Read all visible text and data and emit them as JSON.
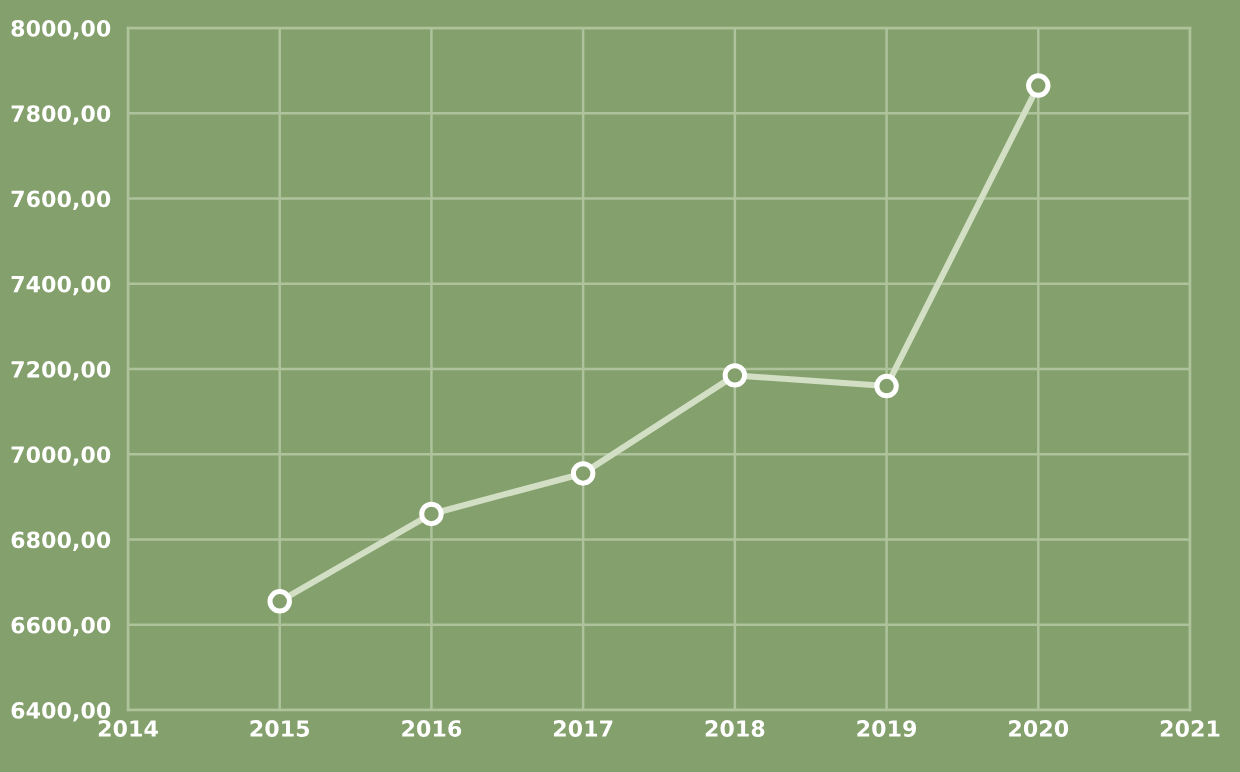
{
  "chart_data": {
    "type": "line",
    "x": [
      2015,
      2016,
      2017,
      2018,
      2019,
      2020
    ],
    "series": [
      {
        "color": "#d3dfc5",
        "values": [
          6655,
          6860,
          6955,
          7185,
          7160,
          7865
        ]
      }
    ],
    "xlim": [
      2014,
      2021
    ],
    "xticks": [
      2014,
      2015,
      2016,
      2017,
      2018,
      2019,
      2020,
      2021
    ],
    "ylim": [
      6400,
      8000
    ],
    "yticks": [
      {
        "value": 6400,
        "label": "6400,00"
      },
      {
        "value": 6600,
        "label": "6600,00"
      },
      {
        "value": 6800,
        "label": "6800,00"
      },
      {
        "value": 7000,
        "label": "7000,00"
      },
      {
        "value": 7200,
        "label": "7200,00"
      },
      {
        "value": 7400,
        "label": "7400,00"
      },
      {
        "value": 7600,
        "label": "7600,00"
      },
      {
        "value": 7800,
        "label": "7800,00"
      },
      {
        "value": 8000,
        "label": "8000,00"
      }
    ],
    "grid": true,
    "marker": "circle",
    "line_style": "solid"
  }
}
